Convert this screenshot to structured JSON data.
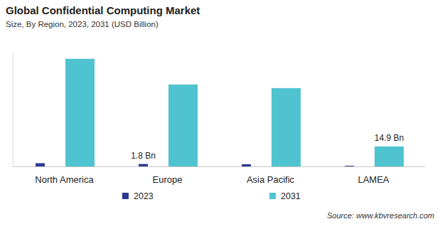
{
  "chart_data": {
    "type": "bar",
    "title": "Global Confidential Computing Market",
    "subtitle": "Size, By Region, 2023, 2031 (USD Billion)",
    "source": "Source: www.kbvresearch.com",
    "categories": [
      "North America",
      "Europe",
      "Asia Pacific",
      "LAMEA"
    ],
    "series": [
      {
        "name": "2023",
        "color": "#2b3990",
        "values": [
          2.4,
          1.8,
          1.6,
          0.5
        ],
        "value_labels": [
          null,
          "1.8 Bn",
          null,
          null
        ]
      },
      {
        "name": "2031",
        "color": "#4fc3cf",
        "values": [
          80.4,
          61.2,
          58.5,
          14.9
        ],
        "value_labels": [
          null,
          null,
          null,
          "14.9 Bn"
        ]
      }
    ],
    "ylim": [
      0,
      85
    ],
    "yticks": [],
    "grid": false,
    "legend": "bottom",
    "data_labels": true,
    "tick_labels": "x"
  }
}
